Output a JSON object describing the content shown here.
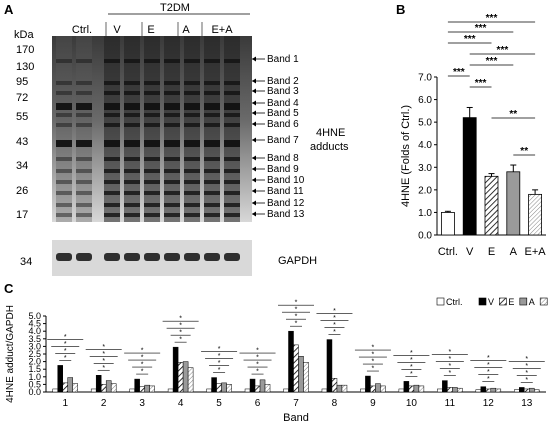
{
  "panels": {
    "a": "A",
    "b": "B",
    "c": "C"
  },
  "blot": {
    "kda_label": "kDa",
    "markers": [
      "170",
      "130",
      "95",
      "72",
      "55",
      "43",
      "34",
      "26",
      "17"
    ],
    "gapdh_marker": "34",
    "group_header": "T2DM",
    "lanes": [
      "Ctrl.",
      "V",
      "E",
      "A",
      "E+A"
    ],
    "bands": [
      "Band 1",
      "Band 2",
      "Band 3",
      "Band 4",
      "Band 5",
      "Band 6",
      "Band 7",
      "Band 8",
      "Band 9",
      "Band 10",
      "Band 11",
      "Band 12",
      "Band 13"
    ],
    "adduct_label_line1": "4HNE",
    "adduct_label_line2": "adducts",
    "gapdh_label": "GAPDH"
  },
  "chart_data": [
    {
      "type": "bar",
      "panel": "B",
      "categories": [
        "Ctrl.",
        "V",
        "E",
        "A",
        "E+A"
      ],
      "values": [
        1.0,
        5.2,
        2.6,
        2.8,
        1.8
      ],
      "errors": [
        0.05,
        0.45,
        0.12,
        0.3,
        0.2
      ],
      "ylabel": "4HNE (Folds of Ctrl.)",
      "ylim": [
        0,
        7
      ],
      "yticks": [
        "0.0",
        "1.0",
        "2.0",
        "3.0",
        "4.0",
        "5.0",
        "6.0",
        "7.0"
      ],
      "fills": [
        "white",
        "black",
        "hatch",
        "gray",
        "hatch-light"
      ],
      "significance": [
        {
          "from": 0,
          "to": 4,
          "label": "***"
        },
        {
          "from": 0,
          "to": 3,
          "label": "***"
        },
        {
          "from": 0,
          "to": 2,
          "label": "***"
        },
        {
          "from": 1,
          "to": 4,
          "label": "***"
        },
        {
          "from": 1,
          "to": 3,
          "label": "***"
        },
        {
          "from": 0,
          "to": 1,
          "label": "***"
        },
        {
          "from": 1,
          "to": 2,
          "label": "***"
        },
        {
          "from": 2,
          "to": 4,
          "label": "**"
        },
        {
          "from": 3,
          "to": 4,
          "label": "**"
        }
      ]
    },
    {
      "type": "bar",
      "panel": "C",
      "categories": [
        "1",
        "2",
        "3",
        "4",
        "5",
        "6",
        "7",
        "8",
        "9",
        "10",
        "11",
        "12",
        "13"
      ],
      "xlabel": "Band",
      "ylabel": "4HNE adduct/GAPDH",
      "ylim": [
        0,
        5
      ],
      "yticks": [
        "0.0",
        "0.5",
        "1.0",
        "1.5",
        "2.0",
        "2.5",
        "3.0",
        "3.5",
        "4.0",
        "4.5",
        "5.0"
      ],
      "legend_position": "top-right",
      "series": [
        {
          "name": "Ctrl.",
          "fill": "white",
          "values": [
            0.2,
            0.2,
            0.2,
            0.2,
            0.2,
            0.2,
            0.2,
            0.2,
            0.2,
            0.2,
            0.2,
            0.15,
            0.15
          ]
        },
        {
          "name": "V",
          "fill": "black",
          "values": [
            1.75,
            1.1,
            0.85,
            2.95,
            0.95,
            0.85,
            4.0,
            3.45,
            1.05,
            0.7,
            0.75,
            0.35,
            0.3
          ]
        },
        {
          "name": "E",
          "fill": "hatch",
          "values": [
            0.6,
            0.5,
            0.35,
            1.95,
            0.55,
            0.4,
            3.1,
            0.9,
            0.4,
            0.4,
            0.3,
            0.2,
            0.2
          ]
        },
        {
          "name": "A",
          "fill": "gray",
          "values": [
            0.95,
            0.75,
            0.45,
            2.0,
            0.6,
            0.8,
            2.35,
            0.45,
            0.55,
            0.45,
            0.3,
            0.25,
            0.25
          ]
        },
        {
          "name": "E+A",
          "fill": "hatch-light",
          "values": [
            0.55,
            0.55,
            0.4,
            1.6,
            0.5,
            0.5,
            1.95,
            0.45,
            0.4,
            0.4,
            0.25,
            0.2,
            0.15
          ]
        }
      ],
      "significance_label": "*"
    }
  ]
}
